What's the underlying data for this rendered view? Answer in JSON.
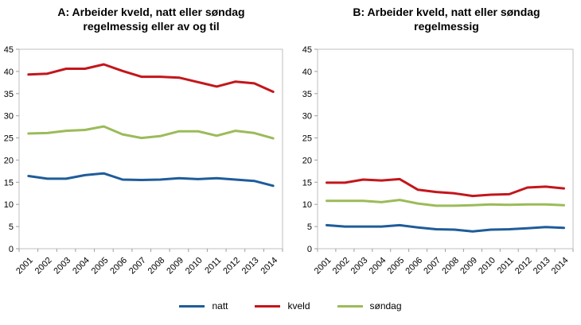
{
  "figure": {
    "background": "#ffffff",
    "axis_color": "#bfbfbf",
    "tick_color": "#9e9e9e",
    "text_color": "#000000"
  },
  "legend": {
    "items": [
      {
        "label": "natt",
        "color": "#1F5C99"
      },
      {
        "label": "kveld",
        "color": "#C3161C"
      },
      {
        "label": "søndag",
        "color": "#9BBB59"
      }
    ]
  },
  "chart_data": [
    {
      "type": "line",
      "title": "A: Arbeider kveld, natt eller søndag regelmessig eller av og til",
      "categories": [
        "2001",
        "2002",
        "2003",
        "2004",
        "2005",
        "2006",
        "2007",
        "2008",
        "2009",
        "2010",
        "2011",
        "2012",
        "2013",
        "2014"
      ],
      "series": [
        {
          "name": "natt",
          "color": "#1F5C99",
          "values": [
            16.4,
            15.8,
            15.8,
            16.6,
            17.0,
            15.6,
            15.5,
            15.6,
            15.9,
            15.7,
            15.9,
            15.6,
            15.3,
            14.2
          ]
        },
        {
          "name": "kveld",
          "color": "#C3161C",
          "values": [
            39.3,
            39.5,
            40.6,
            40.6,
            41.6,
            40.1,
            38.8,
            38.8,
            38.6,
            37.6,
            36.6,
            37.7,
            37.3,
            35.4
          ]
        },
        {
          "name": "søndag",
          "color": "#9BBB59",
          "values": [
            26.0,
            26.1,
            26.6,
            26.8,
            27.6,
            25.8,
            25.0,
            25.4,
            26.5,
            26.5,
            25.5,
            26.6,
            26.1,
            24.9
          ]
        }
      ],
      "ylim": [
        0,
        45
      ],
      "yticks": [
        0,
        5,
        10,
        15,
        20,
        25,
        30,
        35,
        40,
        45
      ],
      "grid": false,
      "legend_position": "bottom-shared"
    },
    {
      "type": "line",
      "title": "B: Arbeider kveld, natt eller søndag regelmessig",
      "categories": [
        "2001",
        "2002",
        "2003",
        "2004",
        "2005",
        "2006",
        "2007",
        "2008",
        "2009",
        "2010",
        "2011",
        "2012",
        "2013",
        "2014"
      ],
      "series": [
        {
          "name": "natt",
          "color": "#1F5C99",
          "values": [
            5.3,
            5.0,
            5.0,
            5.0,
            5.3,
            4.8,
            4.4,
            4.3,
            3.9,
            4.3,
            4.4,
            4.6,
            4.9,
            4.7
          ]
        },
        {
          "name": "kveld",
          "color": "#C3161C",
          "values": [
            14.9,
            14.9,
            15.6,
            15.4,
            15.7,
            13.3,
            12.8,
            12.5,
            11.9,
            12.2,
            12.3,
            13.8,
            14.0,
            13.6
          ]
        },
        {
          "name": "søndag",
          "color": "#9BBB59",
          "values": [
            10.8,
            10.8,
            10.8,
            10.5,
            11.0,
            10.2,
            9.7,
            9.7,
            9.8,
            10.0,
            9.9,
            10.0,
            10.0,
            9.8
          ]
        }
      ],
      "ylim": [
        0,
        45
      ],
      "yticks": [
        0,
        5,
        10,
        15,
        20,
        25,
        30,
        35,
        40,
        45
      ],
      "grid": false,
      "legend_position": "bottom-shared"
    }
  ]
}
